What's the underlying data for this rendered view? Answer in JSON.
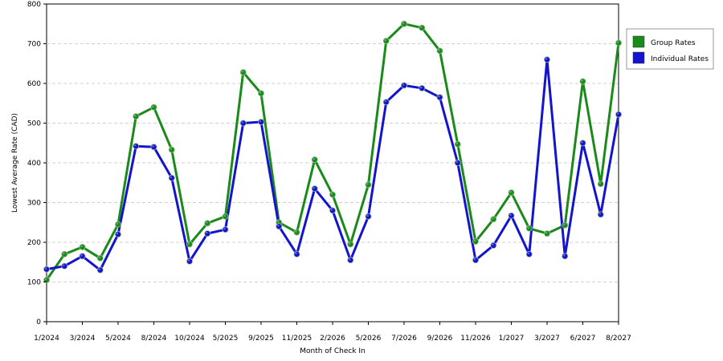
{
  "chart_data": {
    "type": "line",
    "title": "",
    "xlabel": "Month of Check In",
    "ylabel": "Lowest Average Rate (CAD)",
    "ylim": [
      0,
      800
    ],
    "yticks": [
      0,
      100,
      200,
      300,
      400,
      500,
      600,
      700,
      800
    ],
    "x_tick_labels": [
      "1/2024",
      "3/2024",
      "5/2024",
      "8/2024",
      "10/2024",
      "5/2025",
      "9/2025",
      "11/2025",
      "2/2026",
      "5/2026",
      "7/2026",
      "9/2026",
      "11/2026",
      "1/2027",
      "3/2027",
      "6/2027",
      "8/2027"
    ],
    "grid": true,
    "legend_position": "right",
    "series": [
      {
        "name": "Group Rates",
        "color": "#1a8a1a",
        "values": [
          105,
          170,
          188,
          160,
          245,
          517,
          540,
          433,
          195,
          248,
          265,
          628,
          575,
          250,
          225,
          408,
          320,
          195,
          345,
          707,
          750,
          740,
          682,
          447,
          202,
          258,
          325,
          235,
          222,
          243,
          605,
          347,
          702
        ]
      },
      {
        "name": "Individual Rates",
        "color": "#1414cc",
        "values": [
          132,
          140,
          165,
          130,
          220,
          442,
          440,
          362,
          152,
          222,
          232,
          500,
          503,
          240,
          170,
          335,
          280,
          155,
          265,
          553,
          595,
          588,
          565,
          400,
          155,
          192,
          267,
          170,
          660,
          165,
          450,
          270,
          522
        ]
      }
    ]
  }
}
